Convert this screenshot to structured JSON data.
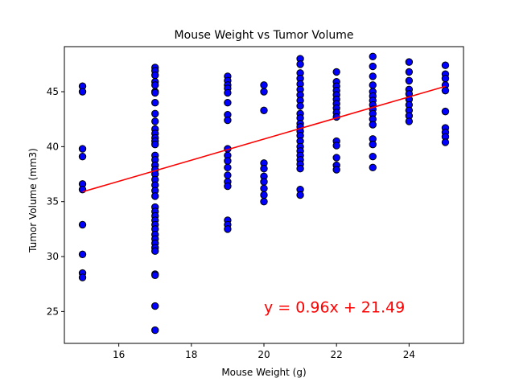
{
  "chart_data": {
    "type": "scatter",
    "title": "Mouse Weight vs Tumor Volume",
    "xlabel": "Mouse Weight (g)",
    "ylabel": "Tumor Volume (mm3)",
    "xlim": [
      14.5,
      25.5
    ],
    "ylim": [
      22.1,
      49.1
    ],
    "xticks": [
      16,
      18,
      20,
      22,
      24
    ],
    "yticks": [
      25,
      30,
      35,
      40,
      45
    ],
    "grid": false,
    "marker_color": "#0000ff",
    "marker_edge": "#000000",
    "line_color": "#ff0000",
    "points": {
      "15": [
        45.5,
        45.0,
        39.8,
        39.1,
        36.6,
        36.1,
        32.9,
        30.2,
        28.5,
        28.1
      ],
      "17": [
        47.2,
        46.9,
        46.5,
        45.9,
        45.6,
        45.0,
        44.9,
        44.0,
        43.0,
        42.3,
        41.6,
        41.2,
        40.8,
        40.5,
        40.2,
        39.2,
        38.8,
        38.3,
        37.9,
        37.5,
        37.0,
        36.5,
        36.0,
        35.5,
        34.5,
        34.1,
        33.7,
        33.3,
        32.9,
        32.5,
        32.0,
        31.6,
        31.2,
        30.8,
        30.5,
        28.4,
        28.3,
        25.5,
        23.3
      ],
      "19": [
        46.4,
        46.0,
        45.6,
        45.3,
        44.9,
        44.0,
        42.9,
        42.4,
        39.8,
        39.2,
        38.7,
        38.1,
        37.4,
        36.8,
        36.4,
        33.3,
        32.9,
        32.5
      ],
      "20": [
        45.6,
        45.0,
        43.3,
        38.5,
        38.0,
        37.3,
        36.8,
        36.2,
        35.6,
        35.0
      ],
      "21": [
        48.0,
        47.5,
        46.7,
        46.2,
        45.7,
        45.2,
        44.7,
        44.2,
        43.7,
        43.0,
        42.6,
        42.1,
        41.8,
        41.4,
        41.0,
        40.5,
        40.0,
        39.6,
        39.2,
        38.8,
        38.4,
        38.0,
        36.1,
        35.6
      ],
      "22": [
        46.8,
        45.9,
        45.5,
        45.1,
        44.7,
        44.3,
        43.9,
        43.5,
        43.1,
        42.7,
        40.5,
        40.1,
        39.0,
        38.3,
        37.9
      ],
      "23": [
        48.2,
        47.3,
        46.4,
        45.6,
        45.0,
        44.6,
        44.2,
        43.8,
        43.4,
        43.0,
        42.5,
        42.0,
        40.7,
        40.2,
        39.1,
        38.1
      ],
      "24": [
        47.7,
        46.8,
        46.0,
        45.2,
        44.8,
        44.3,
        43.8,
        43.3,
        42.8,
        42.3
      ],
      "25": [
        47.4,
        46.6,
        46.2,
        45.6,
        45.1,
        43.2,
        41.7,
        41.3,
        40.9,
        40.4
      ]
    },
    "regression": {
      "slope": 0.96,
      "intercept": 21.49,
      "equation": "y = 0.96x + 21.49",
      "annotation_at": [
        20,
        25
      ]
    }
  }
}
